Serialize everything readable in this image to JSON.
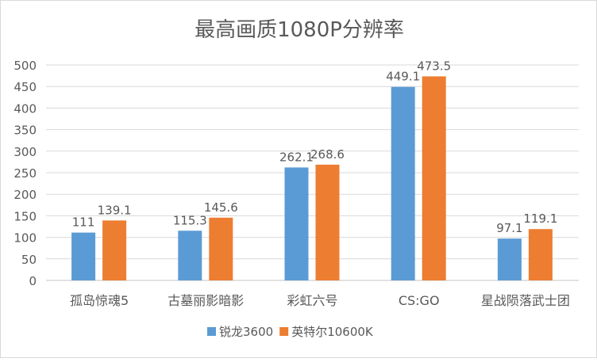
{
  "chart_data": {
    "type": "bar",
    "title": "最高画质1080P分辨率",
    "xlabel": "",
    "ylabel": "",
    "ylim": [
      0,
      500
    ],
    "ytick_step": 50,
    "grid": true,
    "legend_position": "bottom",
    "categories": [
      "孤岛惊魂5",
      "古墓丽影暗影",
      "彩虹六号",
      "CS:GO",
      "星战陨落武士团"
    ],
    "series": [
      {
        "name": "锐龙3600",
        "color": "#5b9bd5",
        "values": [
          111,
          115.3,
          262.1,
          449.1,
          97.1
        ],
        "labels": [
          "111",
          "115.3",
          "262.1",
          "449.1",
          "97.1"
        ]
      },
      {
        "name": "英特尔10600K",
        "color": "#ed7d31",
        "values": [
          139.1,
          145.6,
          268.6,
          473.5,
          119.1
        ],
        "labels": [
          "139.1",
          "145.6",
          "268.6",
          "473.5",
          "119.1"
        ]
      }
    ]
  }
}
